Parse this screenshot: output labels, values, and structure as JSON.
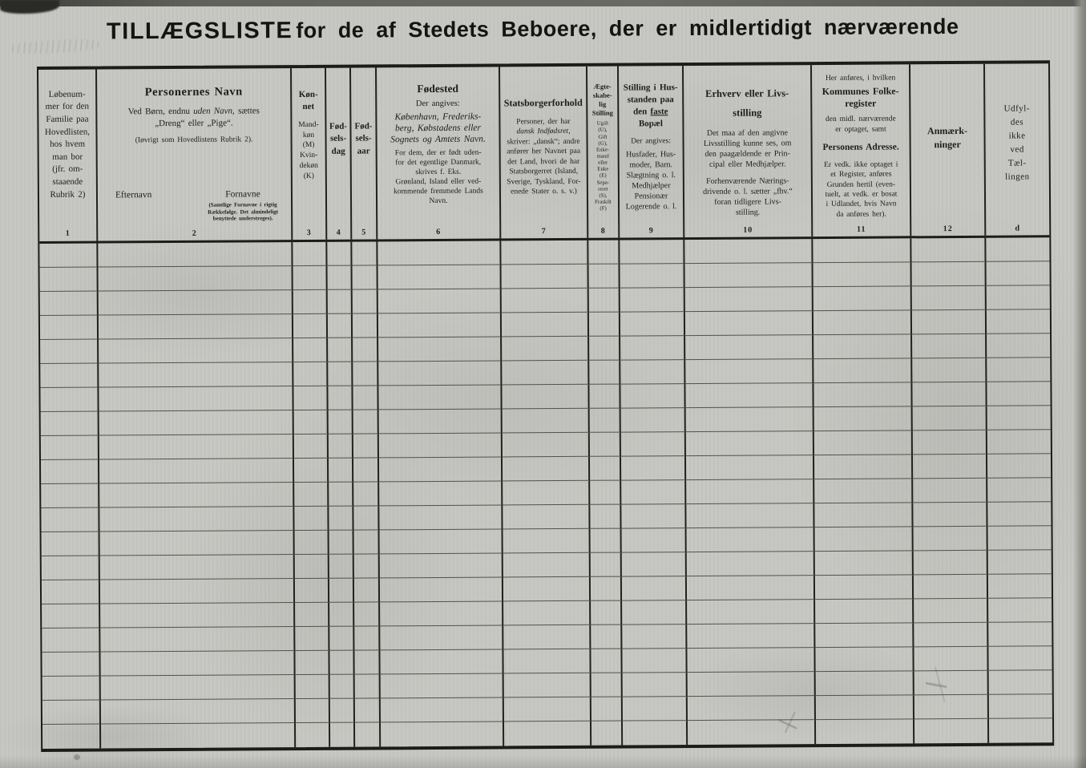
{
  "title": {
    "word1": "TILLÆGSLISTE",
    "rest": "for de af Stedets Beboere, der er midlertidigt nærværende"
  },
  "columns": {
    "c1": {
      "num": "1",
      "text": "Løbenum-\nmer for den\nFamilie paa\nHovedlisten,\nhos hvem\nman bor\n(jfr. om-\nstaaende\nRubrik 2)"
    },
    "c2": {
      "num": "2",
      "title": "Personernes Navn",
      "note_pre": "Ved Børn, endnu ",
      "note_italic": "uden Navn,",
      "note_post": " sættes\n„Dreng“ eller „Pige“.",
      "note2": "(Iøvrigt som Hovedlistens Rubrik 2).",
      "surname_label": "Efternavn",
      "firstname_label": "Fornavne",
      "firstname_note": "(Samtlige Fornavne i rigtig\nRækkefølge. Det almindeligt\nbenyttede understreges)."
    },
    "c3": {
      "num": "3",
      "title": "Køn-\nnet",
      "note": "Mand-\nkøn\n(M)\nKvin-\ndekøn\n(K)"
    },
    "c4": {
      "num": "4",
      "title": "Fød-\nsels-\ndag"
    },
    "c5": {
      "num": "5",
      "title": "Fød-\nsels-\naar"
    },
    "c6": {
      "num": "6",
      "title": "Fødested",
      "sub": "Der angives:",
      "places": "København, Frederiks-\nberg, Købstadens eller\nSognets og Amtets Navn.",
      "abroad": "For dem, der er født uden-\nfor det egentlige Danmark,\nskrives f. Eks.\nGrønland, Island eller ved-\nkommende fremmede Lands\nNavn."
    },
    "c7": {
      "num": "7",
      "title": "Statsborgerforhold",
      "note_pre": "Personer, der har\n",
      "note_italic": "dansk Indfødsret,",
      "note_post": "\nskriver: „dansk“; andre\nanfører her Navnet paa\ndet Land, hvori de har\nStatsborgerret (Island,\nSverige, Tyskland, For-\nenede Stater o. s. v.)"
    },
    "c8": {
      "num": "8",
      "title": "Ægte-\nskabe-\nlig\nStilling",
      "note": "Ugift\n(U),\nGift\n(G),\nEnke-\nmand\neller\nEnke\n(E)\nSepa-\nreret\n(S),\nFraskilt\n(F)"
    },
    "c9": {
      "num": "9",
      "title_pre": "Stilling i Hus-\nstanden paa\nden ",
      "title_underline": "faste",
      "title_post": "\nBopæl",
      "sub": "Der angives:",
      "note": "Husfader, Hus-\nmoder, Barn.\nSlægtning o. l.\nMedhjælper\nPensionær\nLogerende o. l."
    },
    "c10": {
      "num": "10",
      "title": "Erhverv eller Livs-\nstilling",
      "p1": "Det maa af den angivne\nLivsstilling kunne ses, om\nden paagældende er Prin-\ncipal eller Medhjælper.",
      "p2": "Forhenværende Nærings-\ndrivende o. l. sætter „fhv.“\nforan tidligere Livs-\nstilling."
    },
    "c11": {
      "num": "11",
      "pre": "Her anføres, i hvilken",
      "register_title": "Kommunes Folke-\nregister",
      "mid": "den midl. nærværende\ner optaget, samt",
      "address_title": "Personens Adresse.",
      "note": "Er vedk. ikke optaget i\net Register, anføres\nGrunden hertil (even-\ntuelt, at vedk. er bosat\ni Udlandet, hvis Navn\nda anføres her)."
    },
    "c12": {
      "num": "12",
      "title": "Anmærk-\nninger"
    },
    "cd": {
      "num": "d",
      "title": "Udfyl-\ndes\nikke\nved\nTæl-\nlingen"
    }
  },
  "body": {
    "row_count": 21,
    "columns_count": 13,
    "cells": []
  }
}
